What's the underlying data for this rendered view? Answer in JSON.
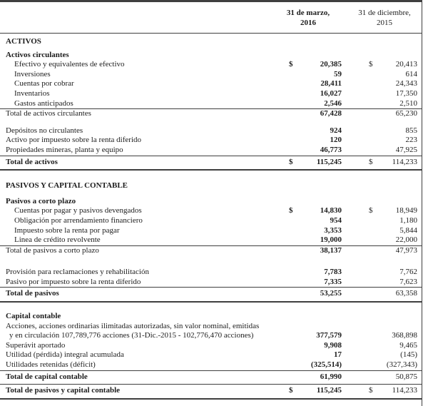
{
  "colors": {
    "text": "#1c1c1c",
    "rule": "#3f3f3f",
    "background": "#ffffff"
  },
  "header": {
    "col_2016": {
      "line1": "31 de marzo,",
      "line2": "2016"
    },
    "col_2015": {
      "line1": "31 de diciembre,",
      "line2": "2015"
    }
  },
  "table": {
    "rows": [
      {
        "kind": "section",
        "label": "ACTIVOS",
        "space": "xs"
      },
      {
        "kind": "section",
        "label": "Activos circulantes",
        "space": "xs"
      },
      {
        "kind": "item",
        "indent": 1,
        "label": "Efectivo y equivalentes de efectivo",
        "dollars": true,
        "v2016": "20,385",
        "v2015": "20,413"
      },
      {
        "kind": "item",
        "indent": 1,
        "label": "Inversiones",
        "v2016": "59",
        "v2015": "614"
      },
      {
        "kind": "item",
        "indent": 1,
        "label": "Cuentas por cobrar",
        "v2016": "28,411",
        "v2015": "24,343"
      },
      {
        "kind": "item",
        "indent": 1,
        "label": "Inventarios",
        "v2016": "16,027",
        "v2015": "17,350"
      },
      {
        "kind": "item",
        "indent": 1,
        "label": "Gastos anticipados",
        "v2016": "2,546",
        "v2015": "2,510",
        "rule_below": true
      },
      {
        "kind": "subtotal",
        "label": "Total de activos circulantes",
        "v2016": "67,428",
        "v2015": "65,230"
      },
      {
        "kind": "item",
        "label": "Depósitos no circulantes",
        "v2016": "924",
        "v2015": "855",
        "space": "md"
      },
      {
        "kind": "item",
        "label": "Activo por impuesto sobre la renta diferido",
        "v2016": "120",
        "v2015": "223"
      },
      {
        "kind": "item",
        "label": "Propiedades mineras, planta y equipo",
        "v2016": "46,773",
        "v2015": "47,925",
        "rule_below": true
      },
      {
        "kind": "total",
        "label": "Total de activos",
        "dollars": true,
        "v2016": "115,245",
        "v2015": "114,233",
        "rule_below": true,
        "strong": true
      },
      {
        "kind": "section",
        "label": "PASIVOS Y CAPITAL CONTABLE",
        "space": "xl"
      },
      {
        "kind": "section",
        "label": "Pasivos a corto plazo",
        "space": "sm"
      },
      {
        "kind": "item",
        "indent": 1,
        "label": "Cuentas por pagar y pasivos devengados",
        "dollars": true,
        "v2016": "14,830",
        "v2015": "18,949"
      },
      {
        "kind": "item",
        "indent": 1,
        "label": "Obligación por arrendamiento financiero",
        "v2016": "954",
        "v2015": "1,180"
      },
      {
        "kind": "item",
        "indent": 1,
        "label": "Impuesto sobre la renta por pagar",
        "v2016": "3,353",
        "v2015": "5,844"
      },
      {
        "kind": "item",
        "indent": 1,
        "label": "Linea de crédito revolvente",
        "v2016": "19,000",
        "v2015": "22,000",
        "rule_below": true
      },
      {
        "kind": "subtotal",
        "label": "Total de pasivos a corto plazo",
        "v2016": "38,137",
        "v2015": "47,973"
      },
      {
        "kind": "item",
        "label": "Provisión para reclamaciones y rehabilitación",
        "v2016": "7,783",
        "v2015": "7,762",
        "space": "xxl"
      },
      {
        "kind": "item",
        "label": "Pasivo por impuesto sobre la renta diferido",
        "v2016": "7,335",
        "v2015": "7,623",
        "rule_below": true
      },
      {
        "kind": "total",
        "label": "Total de pasivos",
        "v2016": "53,255",
        "v2015": "63,358",
        "rule_below": true,
        "strong": true
      },
      {
        "kind": "section",
        "label": "Capital contable",
        "space": "lg"
      },
      {
        "kind": "item",
        "label": "Acciones, acciones ordinarias ilimitadas autorizadas, sin valor nominal, emitidas"
      },
      {
        "kind": "item",
        "indent": 2,
        "label": "y en circulación 107,789,776 acciones (31-Dic.-2015 - 102,776,470 acciones)",
        "v2016": "377,579",
        "v2015": "368,898"
      },
      {
        "kind": "item",
        "label": "Superávit aportado",
        "v2016": "9,908",
        "v2015": "9,465"
      },
      {
        "kind": "item",
        "label": "Utilidad (pérdida) integral acumulada",
        "v2016": "17",
        "v2015": "(145)"
      },
      {
        "kind": "item",
        "label": "Utilidades retenidas (déficit)",
        "v2016": "(325,514)",
        "v2015": "(327,343)",
        "rule_below": true
      },
      {
        "kind": "total",
        "label": "Total de capital contable",
        "v2016": "61,990",
        "v2015": "50,875",
        "rule_below": true
      },
      {
        "kind": "total",
        "label": "Total de pasivos y capital contable",
        "dollars": true,
        "v2016": "115,245",
        "v2015": "114,233",
        "rule_below": true,
        "strong": true
      }
    ]
  }
}
